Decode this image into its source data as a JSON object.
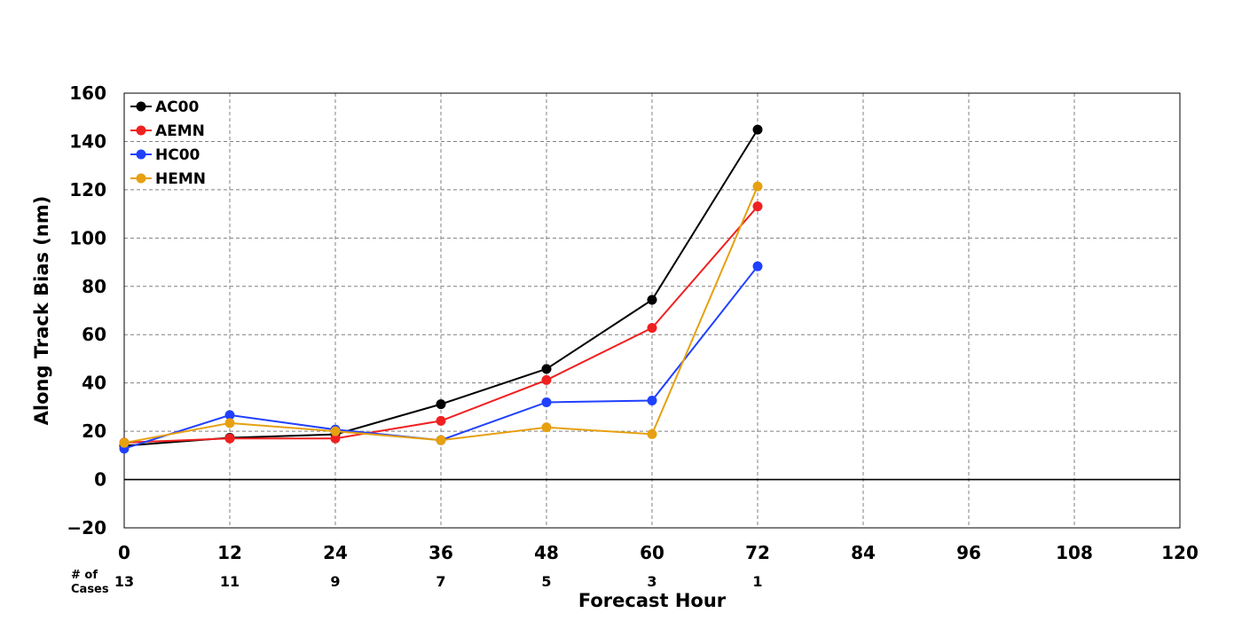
{
  "chart_data": {
    "type": "line",
    "title": "",
    "xlabel": "Forecast Hour",
    "ylabel": "Along Track Bias (nm)",
    "xlim": [
      0,
      120
    ],
    "ylim": [
      -20,
      160
    ],
    "xticks": [
      0,
      12,
      24,
      36,
      48,
      60,
      72,
      84,
      96,
      108,
      120
    ],
    "yticks": [
      -20,
      0,
      20,
      40,
      60,
      80,
      100,
      120,
      140,
      160
    ],
    "ytick_labels": [
      "−20",
      "0",
      "20",
      "40",
      "60",
      "80",
      "100",
      "120",
      "140",
      "160"
    ],
    "grid": true,
    "legend_position": "top-left",
    "x": [
      0,
      12,
      24,
      36,
      48,
      60,
      72
    ],
    "series": [
      {
        "name": "AC00",
        "color": "#000000",
        "values": [
          14.0,
          17.3,
          18.7,
          31.2,
          45.8,
          74.4,
          144.9
        ]
      },
      {
        "name": "AEMN",
        "color": "#f02020",
        "values": [
          15.3,
          17.0,
          17.0,
          24.3,
          41.2,
          62.8,
          113.1
        ]
      },
      {
        "name": "HC00",
        "color": "#2040ff",
        "values": [
          12.8,
          26.7,
          20.7,
          16.3,
          32.0,
          32.7,
          88.3
        ]
      },
      {
        "name": "HEMN",
        "color": "#e6a010",
        "values": [
          15.2,
          23.4,
          20.0,
          16.3,
          21.6,
          18.8,
          121.4
        ]
      }
    ],
    "cases": {
      "header_line1": "# of",
      "header_line2": "Cases",
      "x": [
        0,
        12,
        24,
        36,
        48,
        60,
        72
      ],
      "counts": [
        "13",
        "11",
        "9",
        "7",
        "5",
        "3",
        "1"
      ]
    }
  }
}
